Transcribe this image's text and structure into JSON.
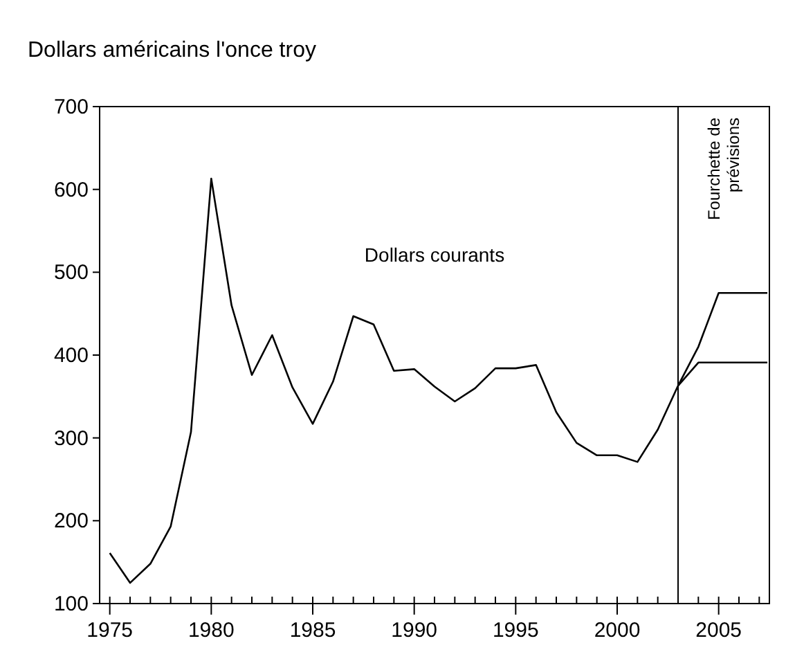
{
  "chart_data": {
    "type": "line",
    "title": "Dollars américains l'once troy",
    "series": [
      {
        "name": "Dollars courants",
        "color": "#000000",
        "x": [
          1975,
          1976,
          1977,
          1978,
          1979,
          1980,
          1981,
          1982,
          1983,
          1984,
          1985,
          1986,
          1987,
          1988,
          1989,
          1990,
          1991,
          1992,
          1993,
          1994,
          1995,
          1996,
          1997,
          1998,
          1999,
          2000,
          2001,
          2002,
          2003,
          2004,
          2005,
          2007.4
        ],
        "values": [
          161,
          125,
          148,
          193,
          307,
          613,
          460,
          376,
          424,
          361,
          317,
          368,
          447,
          437,
          381,
          383,
          362,
          344,
          360,
          384,
          384,
          388,
          331,
          294,
          279,
          279,
          271,
          310,
          363,
          410,
          475,
          475
        ]
      },
      {
        "color": "#000000",
        "x": [
          2003,
          2004,
          2007.4
        ],
        "values": [
          363,
          391,
          391
        ]
      }
    ],
    "xlim": [
      1974.5,
      2007.5
    ],
    "ylim": [
      100,
      700
    ],
    "xticks": [
      1975,
      {
        "value": 1976,
        "label": null
      },
      {
        "value": 1977,
        "label": null
      },
      {
        "value": 1978,
        "label": null
      },
      {
        "value": 1979,
        "label": null
      },
      1980,
      {
        "value": 1981,
        "label": null
      },
      {
        "value": 1982,
        "label": null
      },
      {
        "value": 1983,
        "label": null
      },
      {
        "value": 1984,
        "label": null
      },
      1985,
      {
        "value": 1986,
        "label": null
      },
      {
        "value": 1987,
        "label": null
      },
      {
        "value": 1988,
        "label": null
      },
      {
        "value": 1989,
        "label": null
      },
      1990,
      {
        "value": 1991,
        "label": null
      },
      {
        "value": 1992,
        "label": null
      },
      {
        "value": 1993,
        "label": null
      },
      {
        "value": 1994,
        "label": null
      },
      1995,
      {
        "value": 1996,
        "label": null
      },
      {
        "value": 1997,
        "label": null
      },
      {
        "value": 1998,
        "label": null
      },
      {
        "value": 1999,
        "label": null
      },
      2000,
      {
        "value": 2001,
        "label": null
      },
      {
        "value": 2002,
        "label": null
      },
      {
        "value": 2003,
        "label": null
      },
      {
        "value": 2004,
        "label": null
      },
      2005,
      {
        "value": 2006,
        "label": null
      },
      {
        "value": 2007,
        "label": null
      }
    ],
    "yticks": [
      100,
      200,
      300,
      400,
      500,
      600,
      700
    ],
    "ref_lines": [
      {
        "axis": "x",
        "value": 2003,
        "label": "Fourchette de\nprévisions",
        "color": "#000000"
      }
    ],
    "grid": false,
    "marker": "none",
    "line_style": "solid"
  }
}
